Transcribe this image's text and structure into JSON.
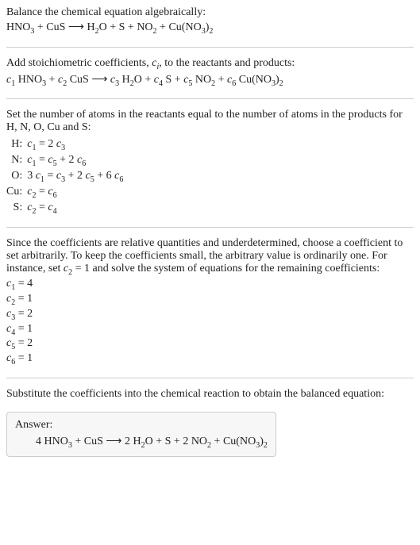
{
  "intro": {
    "line1": "Balance the chemical equation algebraically:",
    "eq_lhs1": "HNO",
    "eq_lhs1_sub": "3",
    "plus": " + ",
    "eq_lhs2": "CuS",
    "arrow": " ⟶ ",
    "rhs1": "H",
    "rhs1_sub": "2",
    "rhs1b": "O",
    "rhs2": "S",
    "rhs3": "NO",
    "rhs3_sub": "2",
    "rhs4a": "Cu(NO",
    "rhs4_sub1": "3",
    "rhs4b": ")",
    "rhs4_sub2": "2"
  },
  "step2": {
    "line1a": "Add stoichiometric coefficients, ",
    "ci": "c",
    "ci_sub": "i",
    "line1b": ", to the reactants and products:",
    "c1": "c",
    "c1s": "1",
    "sp1": " HNO",
    "sp1s": "3",
    "c2": "c",
    "c2s": "2",
    "sp2": " CuS",
    "c3": "c",
    "c3s": "3",
    "sp3a": " H",
    "sp3as": "2",
    "sp3b": "O",
    "c4": "c",
    "c4s": "4",
    "sp4": " S",
    "c5": "c",
    "c5s": "5",
    "sp5": " NO",
    "sp5s": "2",
    "c6": "c",
    "c6s": "6",
    "sp6a": " Cu(NO",
    "sp6as": "3",
    "sp6b": ")",
    "sp6bs": "2"
  },
  "step3": {
    "para": "Set the number of atoms in the reactants equal to the number of atoms in the products for H, N, O, Cu and S:",
    "rows": [
      {
        "el": "H:",
        "lhs_c": "c",
        "lhs_s": "1",
        "eq": " = 2 ",
        "rhs_c": "c",
        "rhs_s": "3",
        "tail": ""
      },
      {
        "el": "N:",
        "lhs_c": "c",
        "lhs_s": "1",
        "eq": " = ",
        "rhs_c": "c",
        "rhs_s": "5",
        "tail": " + 2 ",
        "t_c": "c",
        "t_s": "6"
      },
      {
        "el": "O:",
        "pre": "3 ",
        "lhs_c": "c",
        "lhs_s": "1",
        "eq": " = ",
        "rhs_c": "c",
        "rhs_s": "3",
        "tail": " + 2 ",
        "t_c": "c",
        "t_s": "5",
        "tail2": " + 6 ",
        "t2_c": "c",
        "t2_s": "6"
      },
      {
        "el": "Cu:",
        "lhs_c": "c",
        "lhs_s": "2",
        "eq": " = ",
        "rhs_c": "c",
        "rhs_s": "6",
        "tail": ""
      },
      {
        "el": "S:",
        "lhs_c": "c",
        "lhs_s": "2",
        "eq": " = ",
        "rhs_c": "c",
        "rhs_s": "4",
        "tail": ""
      }
    ]
  },
  "step4": {
    "para_a": "Since the coefficients are relative quantities and underdetermined, choose a coefficient to set arbitrarily. To keep the coefficients small, the arbitrary value is ordinarily one. For instance, set ",
    "cv": "c",
    "cvs": "2",
    "para_b": " = 1 and solve the system of equations for the remaining coefficients:",
    "coeffs": [
      {
        "c": "c",
        "s": "1",
        "v": " = 4"
      },
      {
        "c": "c",
        "s": "2",
        "v": " = 1"
      },
      {
        "c": "c",
        "s": "3",
        "v": " = 2"
      },
      {
        "c": "c",
        "s": "4",
        "v": " = 1"
      },
      {
        "c": "c",
        "s": "5",
        "v": " = 2"
      },
      {
        "c": "c",
        "s": "6",
        "v": " = 1"
      }
    ]
  },
  "step5": {
    "para": "Substitute the coefficients into the chemical reaction to obtain the balanced equation:"
  },
  "answer": {
    "hdr": "Answer:",
    "p1": "4 HNO",
    "p1s": "3",
    "plus": " + ",
    "p2": "CuS",
    "arrow": " ⟶ ",
    "r1": "2 H",
    "r1s": "2",
    "r1b": "O",
    "r2": "S",
    "r3": "2 NO",
    "r3s": "2",
    "r4a": "Cu(NO",
    "r4s1": "3",
    "r4b": ")",
    "r4s2": "2"
  }
}
